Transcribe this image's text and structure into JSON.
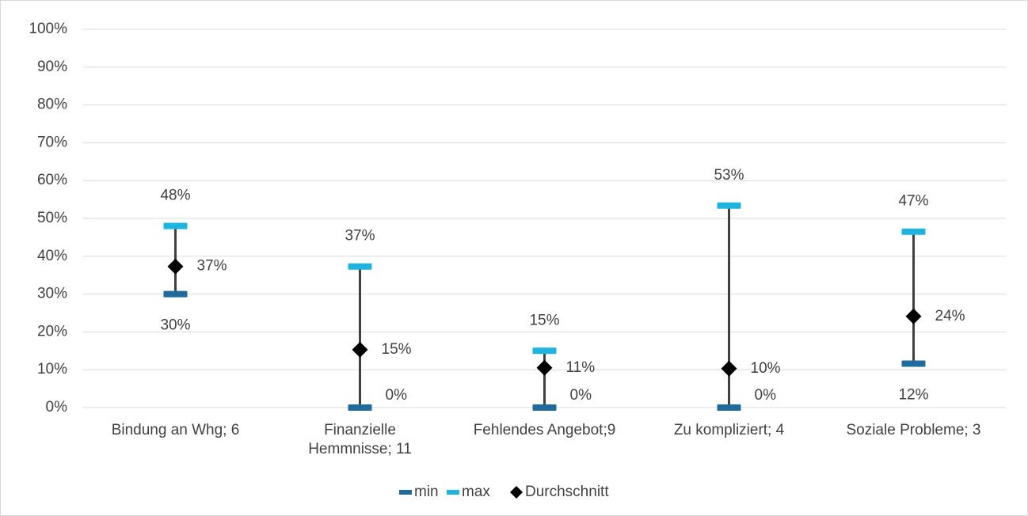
{
  "chart_data": {
    "type": "line",
    "categories": [
      "Bindung an Whg; 6",
      "Finanzielle Hemmnisse; 11",
      "Fehlendes Angebot;9",
      "Zu kompliziert; 4",
      "Soziale Probleme; 3"
    ],
    "series": [
      {
        "name": "min",
        "color": "#1f6b9e",
        "values": [
          30,
          0,
          0,
          0,
          11.6
        ],
        "value_labels": [
          "30%",
          "0%",
          "0%",
          "0%",
          "12%"
        ]
      },
      {
        "name": "max",
        "color": "#1fb4e0",
        "values": [
          48,
          37.3,
          15,
          53.4,
          46.5
        ],
        "value_labels": [
          "48%",
          "37%",
          "15%",
          "53%",
          "47%"
        ]
      },
      {
        "name": "Durchschnitt",
        "color": "#000000",
        "values": [
          37.3,
          15.3,
          10.5,
          10.3,
          24.1
        ],
        "value_labels": [
          "37%",
          "15%",
          "11%",
          "10%",
          "24%"
        ]
      }
    ],
    "ylim": [
      0,
      100
    ],
    "yticks": [
      {
        "value": 0,
        "label": "0%"
      },
      {
        "value": 10,
        "label": "10%"
      },
      {
        "value": 20,
        "label": "20%"
      },
      {
        "value": 30,
        "label": "30%"
      },
      {
        "value": 40,
        "label": "40%"
      },
      {
        "value": 50,
        "label": "50%"
      },
      {
        "value": 60,
        "label": "60%"
      },
      {
        "value": 70,
        "label": "70%"
      },
      {
        "value": 80,
        "label": "80%"
      },
      {
        "value": 90,
        "label": "90%"
      },
      {
        "value": 100,
        "label": "100%"
      }
    ],
    "grid": true,
    "legend": "bottom"
  }
}
